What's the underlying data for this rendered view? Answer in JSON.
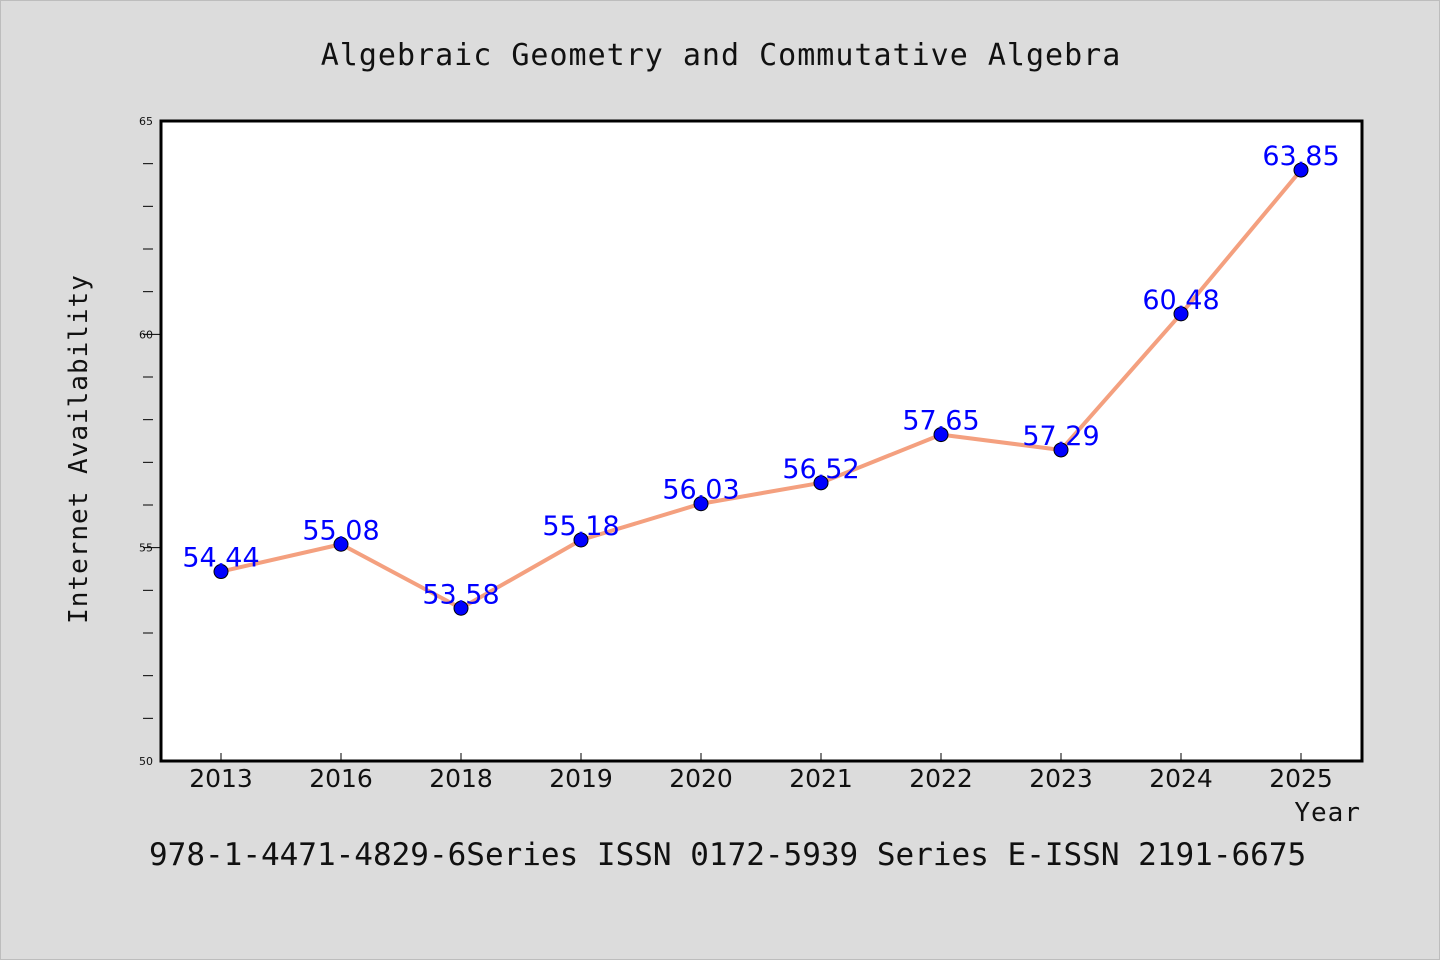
{
  "chart_data": {
    "type": "line",
    "title": "Algebraic Geometry and Commutative Algebra",
    "xlabel": "Year",
    "ylabel": "Internet Availability",
    "categories": [
      "2013",
      "2016",
      "2018",
      "2019",
      "2020",
      "2021",
      "2022",
      "2023",
      "2024",
      "2025"
    ],
    "series": [
      {
        "values": [
          54.44,
          55.08,
          53.58,
          55.18,
          56.03,
          56.52,
          57.65,
          57.29,
          60.48,
          63.85
        ],
        "line_color": "#f4a07f",
        "marker_color": "#0000ff"
      }
    ],
    "data_labels": [
      "54.44",
      "55.08",
      "53.58",
      "55.18",
      "56.03",
      "56.52",
      "57.65",
      "57.29",
      "60.48",
      "63.85"
    ],
    "ylim": [
      50,
      65
    ],
    "yticks": [
      "50",
      "55",
      "60",
      "65"
    ],
    "grid": false,
    "legend": "none"
  },
  "footer": {
    "text": "978-1-4471-4829-6Series ISSN 0172-5939 Series E-ISSN 2191-6675"
  },
  "colors": {
    "background": "#dcdcdc",
    "plot_background": "#ffffff",
    "line": "#f4a07f",
    "marker": "#0000ff",
    "data_label": "#0000ff"
  }
}
